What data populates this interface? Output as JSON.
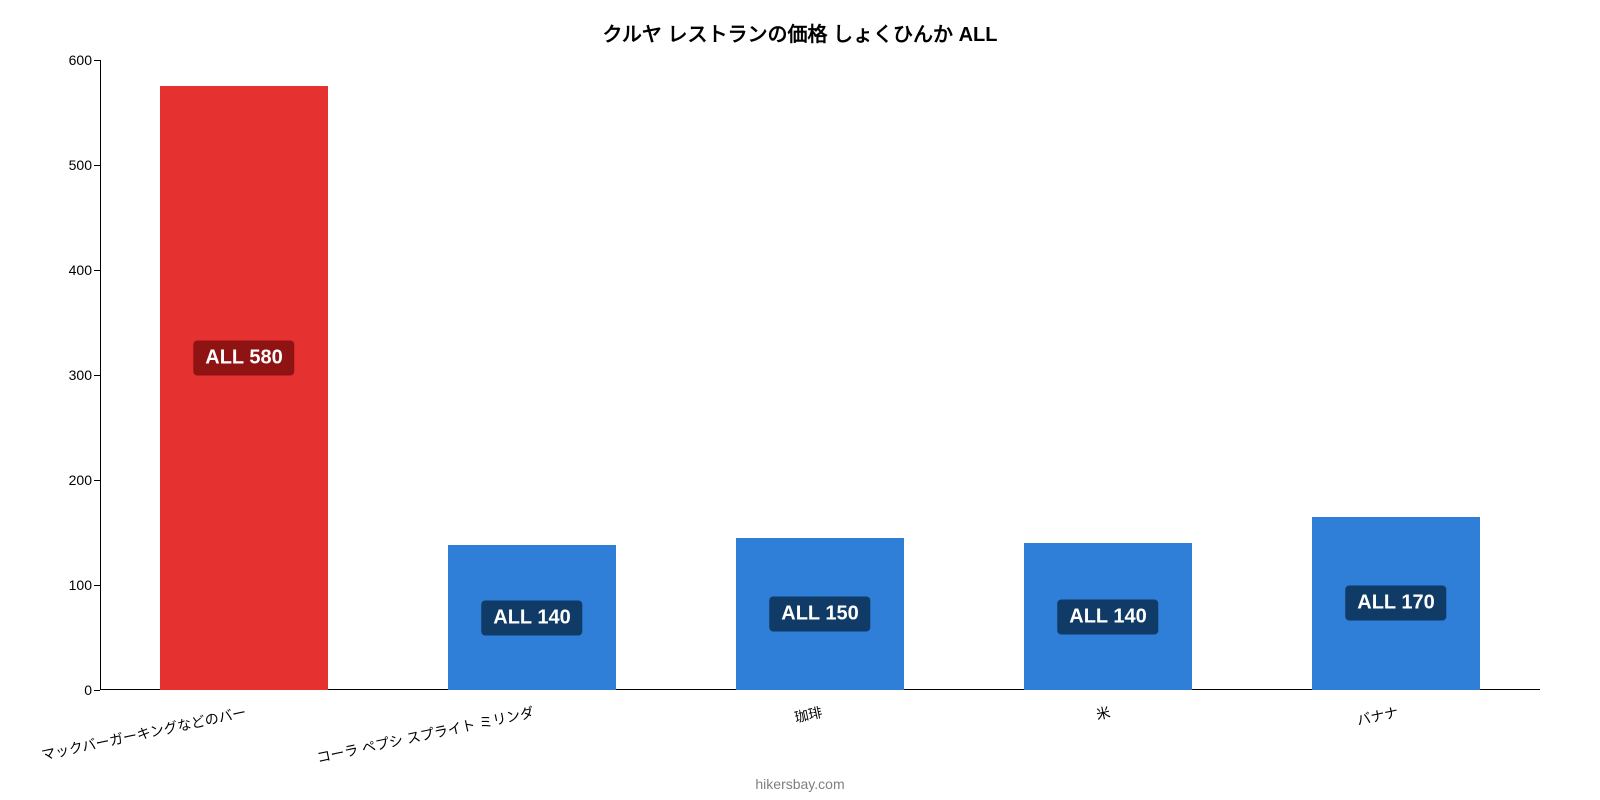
{
  "title": {
    "text": "クルヤ レストランの価格 しょくひんか ALL",
    "fontsize": 20,
    "color": "#000000"
  },
  "source": {
    "text": "hikersbay.com",
    "color": "#808080"
  },
  "chart": {
    "type": "bar",
    "background_color": "#ffffff",
    "axis_color": "#000000",
    "y": {
      "min": 0,
      "max": 600,
      "step": 100,
      "tick_fontsize": 14,
      "tick_color": "#000000"
    },
    "x": {
      "label_rotation_deg": -12,
      "label_fontsize": 14,
      "label_color": "#000000"
    },
    "bar_width_ratio": 0.58,
    "bars": [
      {
        "category": "マックバーガーキングなどのバー",
        "value": 575,
        "color": "#e63131",
        "label_text": "ALL 580",
        "label_bg": "#8f1313",
        "label_fg": "#ffffff"
      },
      {
        "category": "コーラ ペプシ スプライト ミリンダ",
        "value": 138,
        "color": "#2f7ed8",
        "label_text": "ALL 140",
        "label_bg": "#0f3b66",
        "label_fg": "#ffffff"
      },
      {
        "category": "珈琲",
        "value": 145,
        "color": "#2f7ed8",
        "label_text": "ALL 150",
        "label_bg": "#0f3b66",
        "label_fg": "#ffffff"
      },
      {
        "category": "米",
        "value": 140,
        "color": "#2f7ed8",
        "label_text": "ALL 140",
        "label_bg": "#0f3b66",
        "label_fg": "#ffffff"
      },
      {
        "category": "バナナ",
        "value": 165,
        "color": "#2f7ed8",
        "label_text": "ALL 170",
        "label_bg": "#0f3b66",
        "label_fg": "#ffffff"
      }
    ],
    "label_fontsize": 20
  }
}
